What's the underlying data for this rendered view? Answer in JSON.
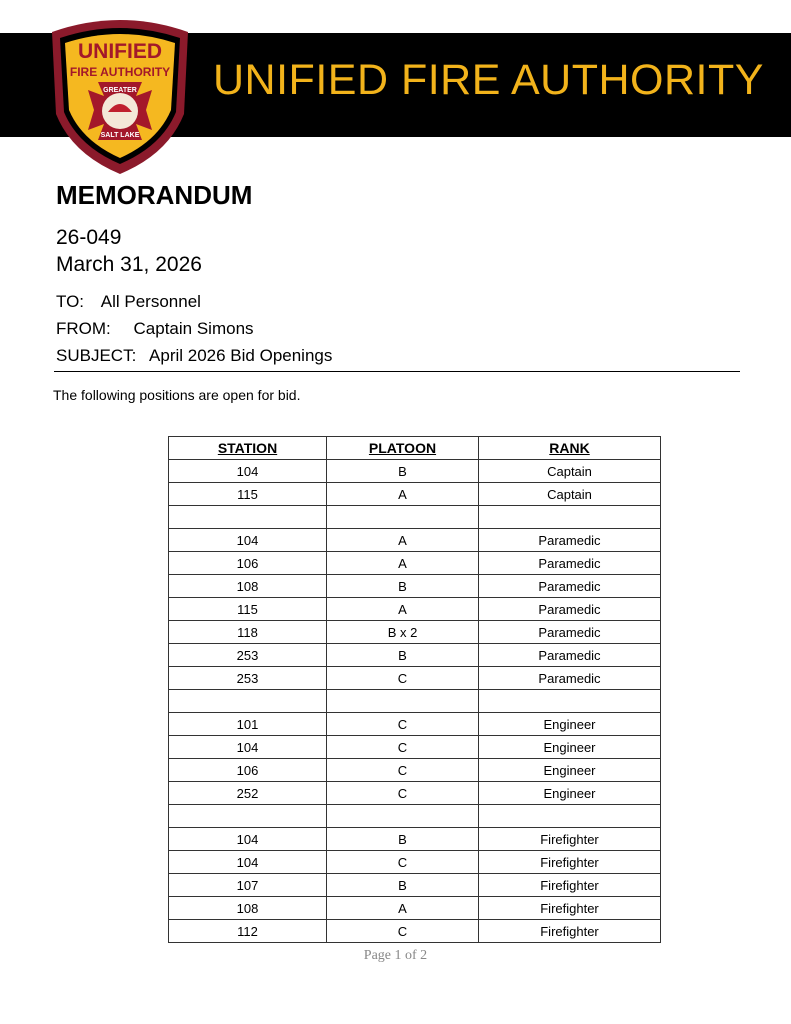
{
  "header": {
    "title": "UNIFIED FIRE AUTHORITY",
    "logo_text": [
      "UNIFIED",
      "FIRE AUTHORITY",
      "GREATER",
      "SALT LAKE"
    ],
    "colors": {
      "banner": "#000000",
      "title": "#f2b31b",
      "badge_border": "#8b1a2b"
    }
  },
  "memo": {
    "heading": "MEMORANDUM",
    "number": "26-049",
    "date": "March 31, 2026",
    "to_label": "TO:",
    "to": "All Personnel",
    "from_label": "FROM:",
    "from": "Captain Simons",
    "subject_label": "SUBJECT:",
    "subject": "April 2026 Bid Openings",
    "intro": "The following positions are open for bid."
  },
  "table": {
    "headers": [
      "STATION",
      "PLATOON",
      "RANK"
    ],
    "rows": [
      [
        "104",
        "B",
        "Captain"
      ],
      [
        "115",
        "A",
        "Captain"
      ],
      [
        "",
        "",
        ""
      ],
      [
        "104",
        "A",
        "Paramedic"
      ],
      [
        "106",
        "A",
        "Paramedic"
      ],
      [
        "108",
        "B",
        "Paramedic"
      ],
      [
        "115",
        "A",
        "Paramedic"
      ],
      [
        "118",
        "B x 2",
        "Paramedic"
      ],
      [
        "253",
        "B",
        "Paramedic"
      ],
      [
        "253",
        "C",
        "Paramedic"
      ],
      [
        "",
        "",
        ""
      ],
      [
        "101",
        "C",
        "Engineer"
      ],
      [
        "104",
        "C",
        "Engineer"
      ],
      [
        "106",
        "C",
        "Engineer"
      ],
      [
        "252",
        "C",
        "Engineer"
      ],
      [
        "",
        "",
        ""
      ],
      [
        "104",
        "B",
        "Firefighter"
      ],
      [
        "104",
        "C",
        "Firefighter"
      ],
      [
        "107",
        "B",
        "Firefighter"
      ],
      [
        "108",
        "A",
        "Firefighter"
      ],
      [
        "112",
        "C",
        "Firefighter"
      ]
    ]
  },
  "footer": {
    "page": "Page 1 of 2"
  }
}
